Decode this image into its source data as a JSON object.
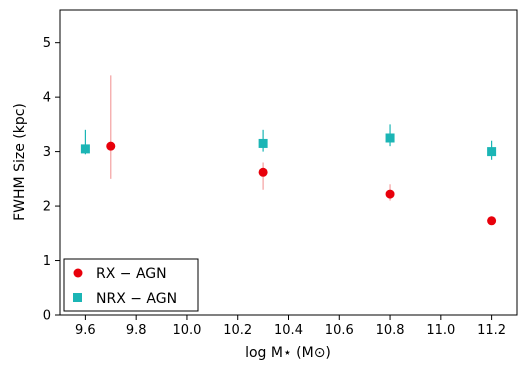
{
  "chart_data": {
    "type": "scatter",
    "xlabel": "log M⋆ (M⊙)",
    "ylabel": "FWHM Size (kpc)",
    "xlim": [
      9.5,
      11.3
    ],
    "ylim": [
      0,
      5.6
    ],
    "xticks": [
      9.6,
      9.8,
      10.0,
      10.2,
      10.4,
      10.6,
      10.8,
      11.0,
      11.2
    ],
    "xtick_labels": [
      "9.6",
      "9.8",
      "10.0",
      "10.2",
      "10.4",
      "10.6",
      "10.8",
      "11.0",
      "11.2"
    ],
    "yticks": [
      0,
      1,
      2,
      3,
      4,
      5
    ],
    "ytick_labels": [
      "0",
      "1",
      "2",
      "3",
      "4",
      "5"
    ],
    "legend_position": "lower-left",
    "series": [
      {
        "name": "RX − AGN",
        "marker": "circle",
        "color": "#e8000b",
        "errcolor": "#f4a0a0",
        "points": [
          {
            "x": 9.7,
            "y": 3.1,
            "ylo": 2.5,
            "yhi": 4.4
          },
          {
            "x": 10.3,
            "y": 2.62,
            "ylo": 2.3,
            "yhi": 2.8
          },
          {
            "x": 10.8,
            "y": 2.22,
            "ylo": 2.1,
            "yhi": 2.4
          },
          {
            "x": 11.2,
            "y": 1.73,
            "ylo": 1.68,
            "yhi": 1.78
          }
        ]
      },
      {
        "name": "NRX − AGN",
        "marker": "square",
        "color": "#1bb5b5",
        "errcolor": "#1bb5b5",
        "points": [
          {
            "x": 9.6,
            "y": 3.05,
            "ylo": 2.95,
            "yhi": 3.4
          },
          {
            "x": 10.3,
            "y": 3.15,
            "ylo": 3.0,
            "yhi": 3.4
          },
          {
            "x": 10.8,
            "y": 3.25,
            "ylo": 3.1,
            "yhi": 3.5
          },
          {
            "x": 11.2,
            "y": 3.0,
            "ylo": 2.85,
            "yhi": 3.2
          }
        ]
      }
    ]
  }
}
